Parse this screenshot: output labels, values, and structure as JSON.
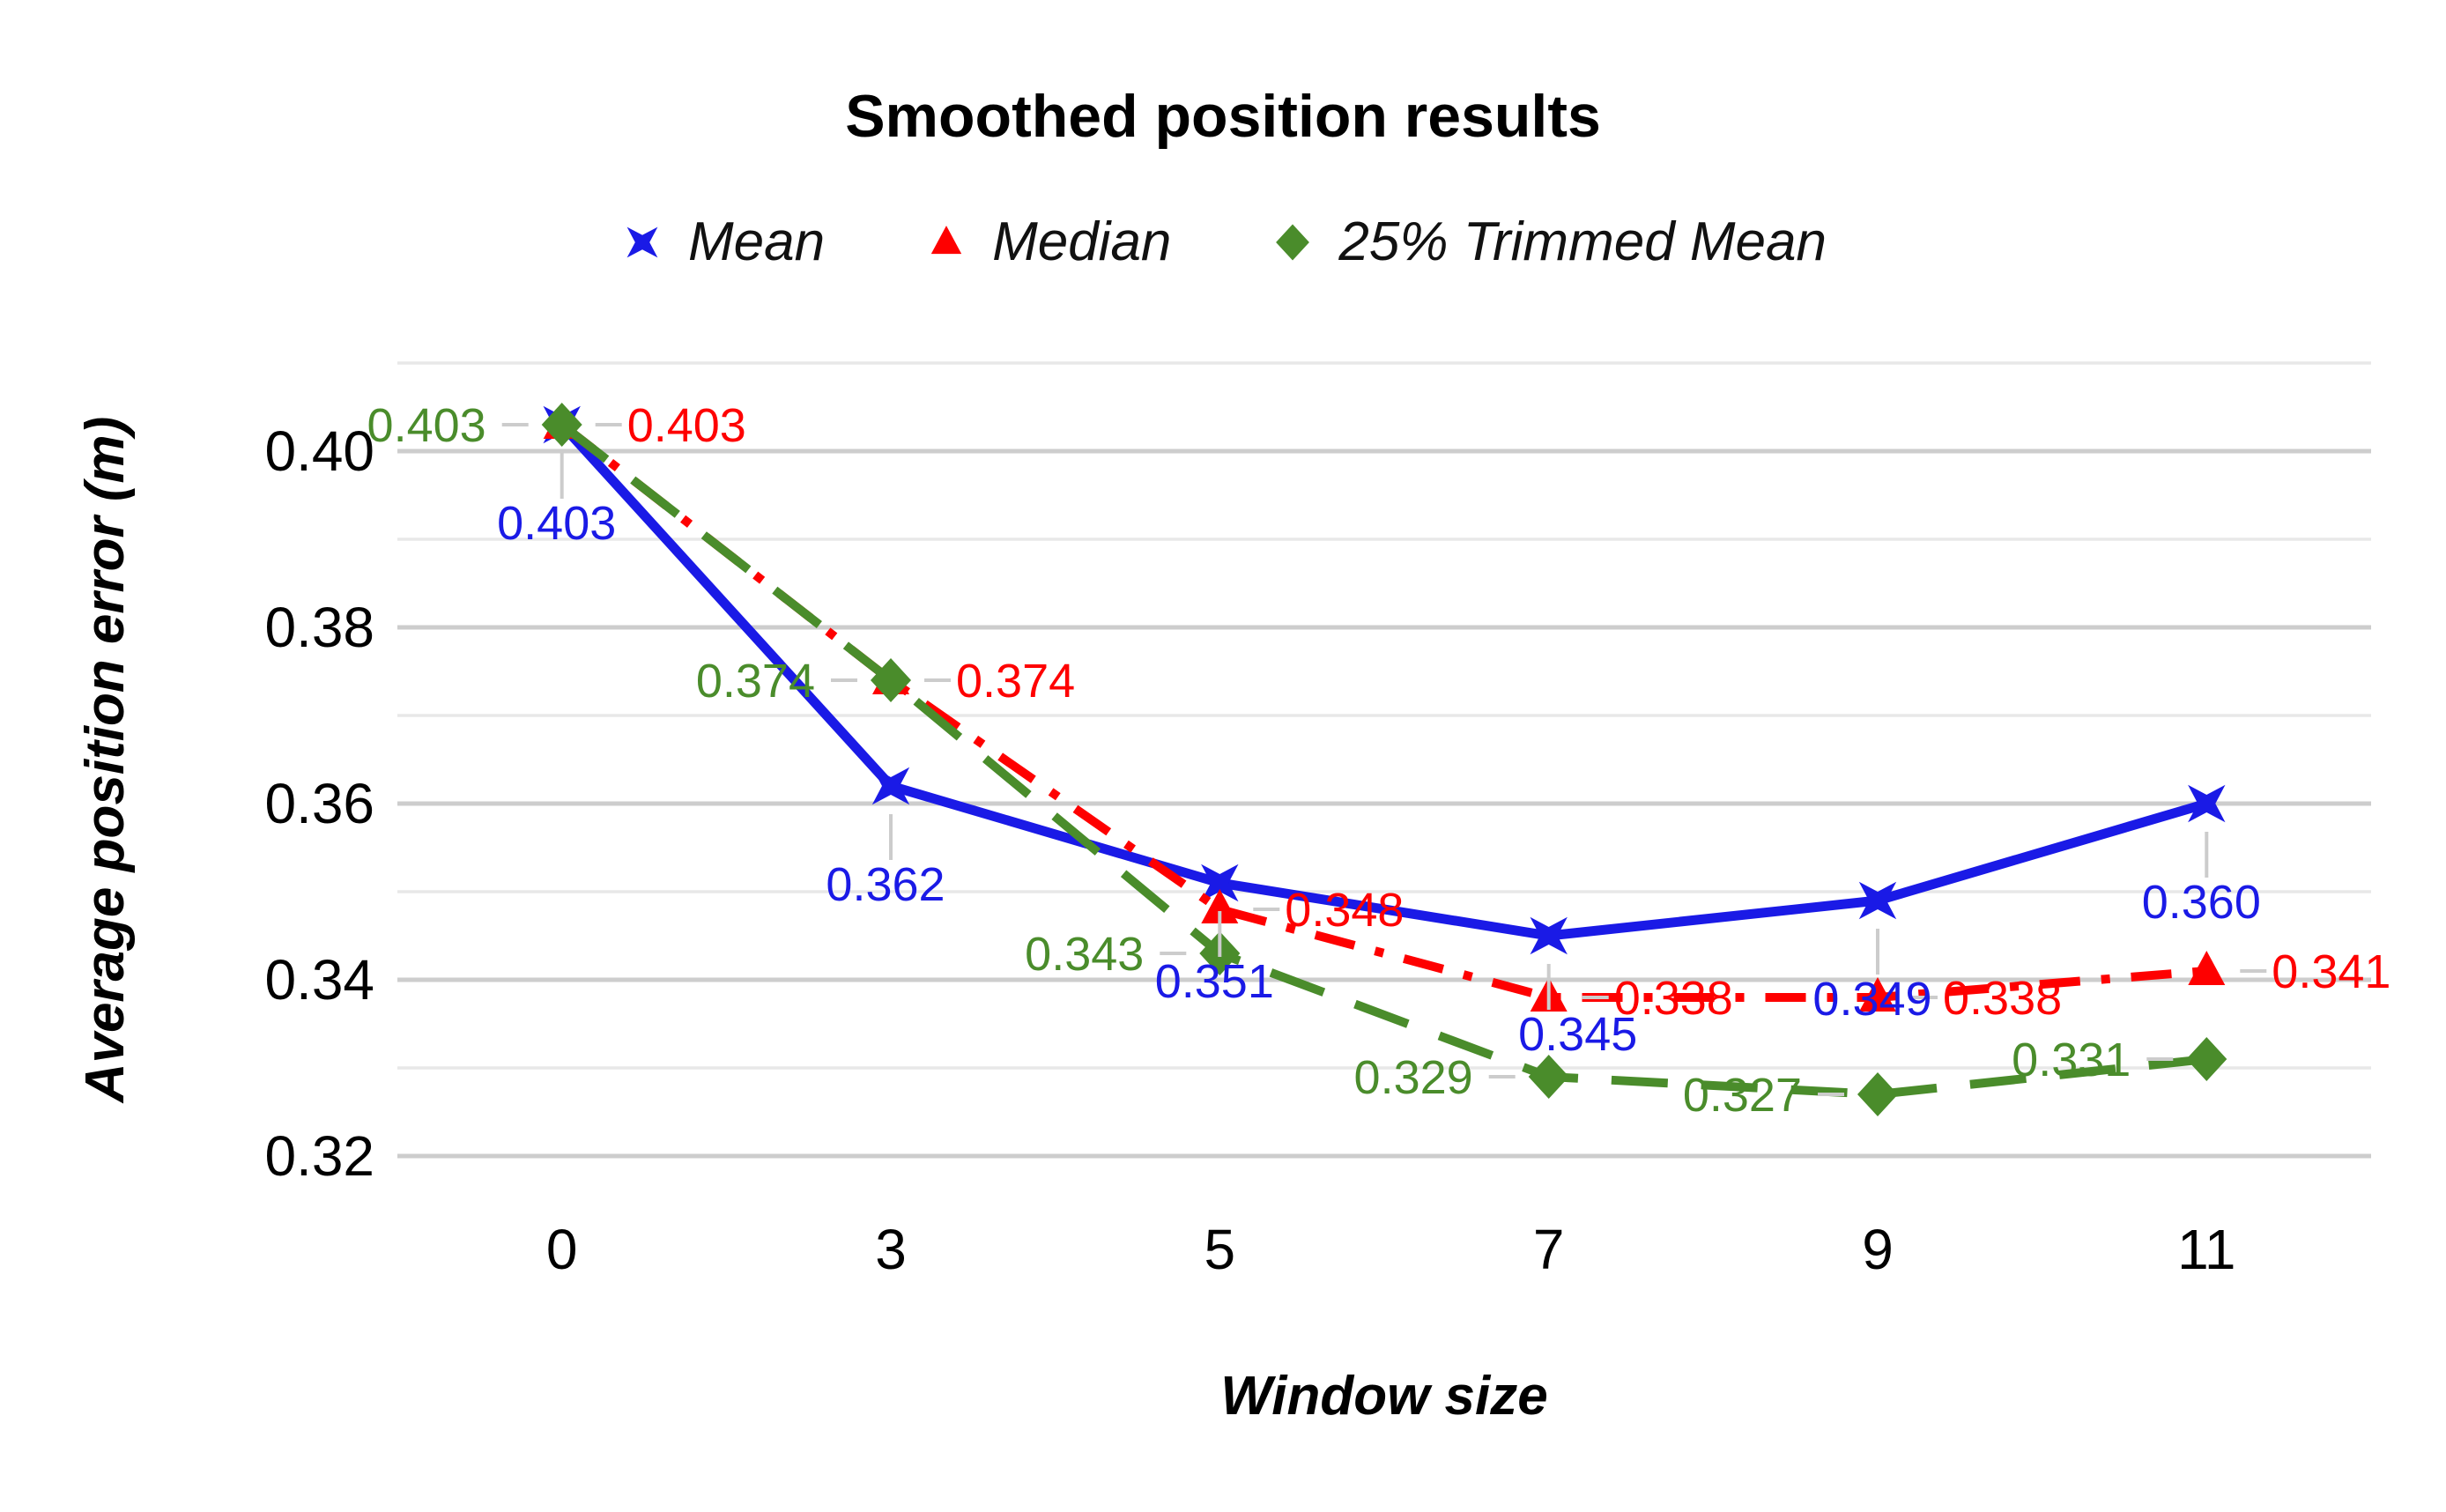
{
  "chart_data": {
    "type": "line",
    "title": "Smoothed position results",
    "xlabel": "Window size",
    "ylabel": "Average position error (m)",
    "categories": [
      "0",
      "3",
      "5",
      "7",
      "9",
      "11"
    ],
    "y_axis": {
      "range": [
        0.32,
        0.41
      ],
      "grid_step": 0.01,
      "tick_labels": [
        {
          "value": 0.4,
          "label": "0.40"
        },
        {
          "value": 0.38,
          "label": "0.38"
        },
        {
          "value": 0.36,
          "label": "0.36"
        },
        {
          "value": 0.34,
          "label": "0.34"
        },
        {
          "value": 0.32,
          "label": "0.32"
        }
      ],
      "major_grid_color": "#cdcdcd",
      "minor_grid_color": "#e8e8e8"
    },
    "legend_position": "top",
    "grid": true,
    "annotation_stem_color": "#cccccc",
    "series": [
      {
        "name": "Mean",
        "color": "#1a1ae6",
        "marker": "x-star",
        "line_style": "solid",
        "values": [
          0.403,
          0.362,
          0.351,
          0.345,
          0.349,
          0.36
        ],
        "labels": [
          "0.403",
          "0.362",
          "0.351",
          "0.345",
          "0.349",
          "0.360"
        ],
        "label_side": "below",
        "label_dx": [
          -6,
          -6,
          -6,
          33,
          -6,
          -6
        ]
      },
      {
        "name": "Median",
        "color": "#fe0000",
        "marker": "triangle",
        "line_style": "dash-dot",
        "values": [
          0.403,
          0.374,
          0.348,
          0.338,
          0.338,
          0.341
        ],
        "labels": [
          "0.403",
          "0.374",
          "0.348",
          "0.338",
          "0.338",
          "0.341"
        ],
        "label_side": "right",
        "label_dx": [
          0,
          0,
          0,
          0,
          0,
          0
        ]
      },
      {
        "name": "25% Trimmed Mean",
        "color": "#4a8c2b",
        "marker": "diamond",
        "line_style": "long-dash",
        "values": [
          0.403,
          0.374,
          0.343,
          0.329,
          0.327,
          0.331
        ],
        "labels": [
          "0.403",
          "0.374",
          "0.343",
          "0.329",
          "0.327",
          "0.331"
        ],
        "label_side": "left",
        "label_dx": [
          0,
          0,
          0,
          0,
          0,
          0
        ]
      }
    ]
  }
}
